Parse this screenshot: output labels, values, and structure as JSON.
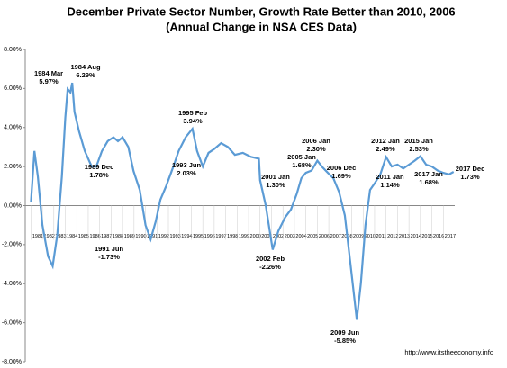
{
  "chart_data": {
    "type": "line",
    "title": "December Private Sector Number, Growth Rate Better than 2010, 2006",
    "subtitle": "(Annual Change in NSA CES Data)",
    "source": "http://www.itstheeconomy.info",
    "x": [
      1981.0,
      1981.3,
      1981.6,
      1982.0,
      1982.5,
      1982.9,
      1983.3,
      1983.7,
      1984.0,
      1984.2,
      1984.45,
      1984.6,
      1984.8,
      1985.2,
      1985.7,
      1986.3,
      1986.7,
      1987.2,
      1987.7,
      1988.2,
      1988.6,
      1989.0,
      1989.5,
      1989.95,
      1990.5,
      1991.0,
      1991.45,
      1991.9,
      1992.3,
      1992.8,
      1993.45,
      1993.9,
      1994.5,
      1995.1,
      1995.5,
      1996.0,
      1996.5,
      1997.0,
      1997.6,
      1998.2,
      1998.8,
      1999.5,
      2000.2,
      2000.9,
      2001.0,
      2001.5,
      2001.9,
      2002.1,
      2002.6,
      2003.2,
      2003.7,
      2004.2,
      2004.6,
      2005.0,
      2005.5,
      2006.0,
      2006.4,
      2006.9,
      2007.4,
      2007.9,
      2008.4,
      2008.9,
      2009.45,
      2009.8,
      2010.2,
      2010.6,
      2011.0,
      2011.5,
      2012.0,
      2012.5,
      2013.0,
      2013.5,
      2014.0,
      2014.5,
      2015.0,
      2015.5,
      2016.0,
      2016.5,
      2017.0,
      2017.5,
      2017.9
    ],
    "series": [
      {
        "name": "Annual Change",
        "color": "#5b9bd5",
        "values": [
          0.2,
          2.8,
          1.5,
          -1.0,
          -2.6,
          -3.1,
          -1.5,
          1.5,
          4.5,
          5.97,
          5.8,
          6.29,
          4.8,
          3.8,
          2.8,
          2.0,
          2.0,
          2.8,
          3.3,
          3.5,
          3.3,
          3.5,
          3.0,
          1.78,
          0.8,
          -1.0,
          -1.73,
          -0.8,
          0.3,
          1.0,
          2.03,
          2.8,
          3.5,
          3.94,
          2.8,
          2.0,
          2.7,
          2.9,
          3.2,
          3.0,
          2.6,
          2.7,
          2.5,
          2.4,
          1.3,
          0.0,
          -1.5,
          -2.26,
          -1.3,
          -0.6,
          -0.2,
          0.6,
          1.4,
          1.68,
          1.8,
          2.3,
          2.0,
          1.69,
          1.4,
          0.7,
          -0.5,
          -3.0,
          -5.85,
          -4.0,
          -1.0,
          0.8,
          1.14,
          1.6,
          2.49,
          2.0,
          2.1,
          1.9,
          2.1,
          2.3,
          2.53,
          2.1,
          2.0,
          1.8,
          1.68,
          1.6,
          1.73
        ]
      }
    ],
    "xlim": [
      1980.5,
      2018
    ],
    "xticks": [
      1981,
      1982,
      1983,
      1984,
      1985,
      1986,
      1987,
      1988,
      1989,
      1990,
      1991,
      1992,
      1993,
      1994,
      1995,
      1996,
      1997,
      1998,
      1999,
      2000,
      2001,
      2002,
      2003,
      2004,
      2005,
      2006,
      2007,
      2008,
      2009,
      2010,
      2011,
      2012,
      2013,
      2014,
      2015,
      2016,
      2017
    ],
    "ylim": [
      -8,
      8
    ],
    "yticks": [
      {
        "value": -8,
        "label": "-8.00%"
      },
      {
        "value": -6,
        "label": "-6.00%"
      },
      {
        "value": -4,
        "label": "-4.00%"
      },
      {
        "value": -2,
        "label": "-2.00%"
      },
      {
        "value": 0,
        "label": "0.00%"
      },
      {
        "value": 2,
        "label": "2.00%"
      },
      {
        "value": 4,
        "label": "4.00%"
      },
      {
        "value": 6,
        "label": "6.00%"
      },
      {
        "value": 8,
        "label": "8.00%"
      }
    ],
    "grid": false,
    "annotations": [
      {
        "text": "1984 Mar",
        "label": "5.97%"
      },
      {
        "text": "1984 Aug",
        "label": "6.29%"
      },
      {
        "text": "1989 Dec",
        "label": "1.78%"
      },
      {
        "text": "1991 Jun",
        "label": "-1.73%"
      },
      {
        "text": "1993 Jun",
        "label": "2.03%"
      },
      {
        "text": "1995 Feb",
        "label": "3.94%"
      },
      {
        "text": "2001 Jan",
        "label": "1.30%"
      },
      {
        "text": "2002 Feb",
        "label": "-2.26%"
      },
      {
        "text": "2005 Jan",
        "label": "1.68%"
      },
      {
        "text": "2006 Jan",
        "label": "2.30%"
      },
      {
        "text": "2006 Dec",
        "label": "1.69%"
      },
      {
        "text": "2009 Jun",
        "label": "-5.85%"
      },
      {
        "text": "2011 Jan",
        "label": "1.14%"
      },
      {
        "text": "2012 Jan",
        "label": "2.49%"
      },
      {
        "text": "2015 Jan",
        "label": "2.53%"
      },
      {
        "text": "2017 Jan",
        "label": "1.68%"
      },
      {
        "text": "2017 Dec",
        "label": "1.73%"
      }
    ]
  }
}
